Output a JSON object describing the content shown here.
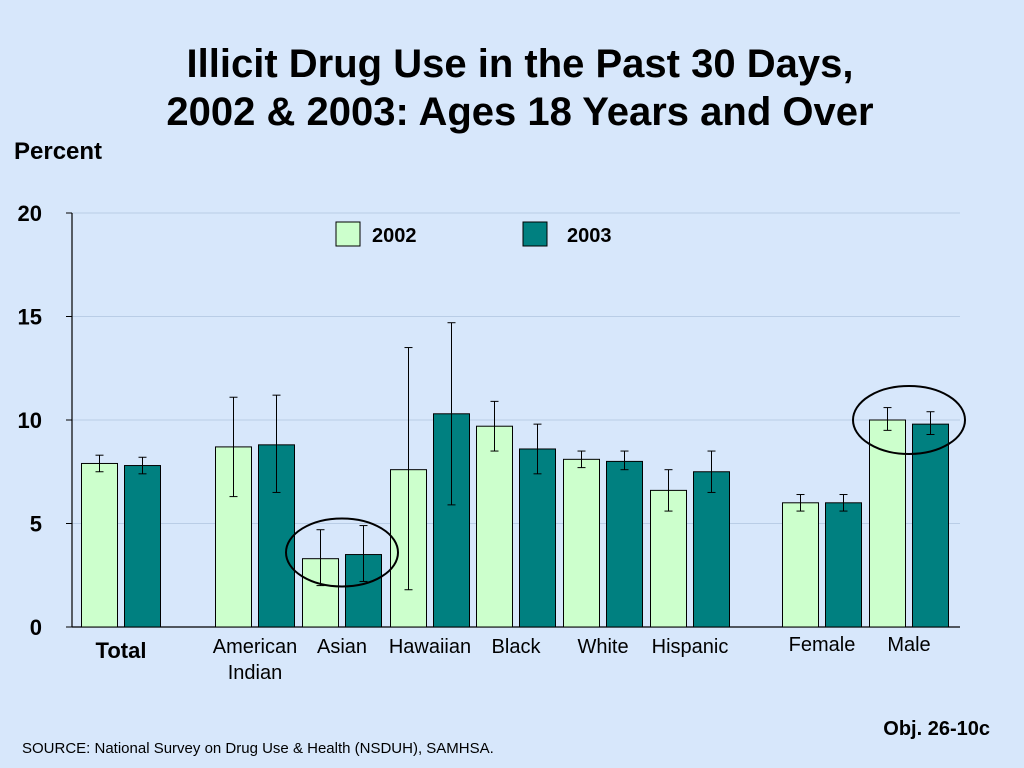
{
  "slide": {
    "title_line1": "Illicit Drug Use in the Past 30 Days,",
    "title_line2": "2002 & 2003: Ages 18 Years and Over",
    "obj": "Obj. 26-10c",
    "source": "SOURCE: National Survey on Drug Use & Health (NSDUH), SAMHSA."
  },
  "chart_data": {
    "type": "bar",
    "ylabel": "Percent",
    "xlabel": "",
    "ylim": [
      0,
      20
    ],
    "yticks": [
      0,
      5,
      10,
      15,
      20
    ],
    "grid": true,
    "legend_position": "top-center",
    "categories": [
      [
        "Total"
      ],
      [
        "American",
        "Indian"
      ],
      [
        "Asian"
      ],
      [
        "Hawaiian"
      ],
      [
        "Black"
      ],
      [
        "White"
      ],
      [
        "Hispanic"
      ],
      [
        "Female"
      ],
      [
        "Male"
      ]
    ],
    "groups": [
      [
        0
      ],
      [
        1,
        2,
        3,
        4,
        5,
        6
      ],
      [
        7,
        8
      ]
    ],
    "bold_categories": [
      0
    ],
    "highlighted_categories": [
      2,
      8
    ],
    "series": [
      {
        "name": "2002",
        "color": "#ccffcc",
        "values": [
          7.9,
          8.7,
          3.3,
          7.6,
          9.7,
          8.1,
          6.6,
          6.0,
          10.0
        ],
        "error_low": [
          7.5,
          6.3,
          2.0,
          1.8,
          8.5,
          7.7,
          5.6,
          5.6,
          9.5
        ],
        "error_high": [
          8.3,
          11.1,
          4.7,
          13.5,
          10.9,
          8.5,
          7.6,
          6.4,
          10.6
        ]
      },
      {
        "name": "2003",
        "color": "#008080",
        "values": [
          7.8,
          8.8,
          3.5,
          10.3,
          8.6,
          8.0,
          7.5,
          6.0,
          9.8
        ],
        "error_low": [
          7.4,
          6.5,
          2.2,
          5.9,
          7.4,
          7.6,
          6.5,
          5.6,
          9.3
        ],
        "error_high": [
          8.2,
          11.2,
          4.9,
          14.7,
          9.8,
          8.5,
          8.5,
          6.4,
          10.4
        ]
      }
    ]
  }
}
